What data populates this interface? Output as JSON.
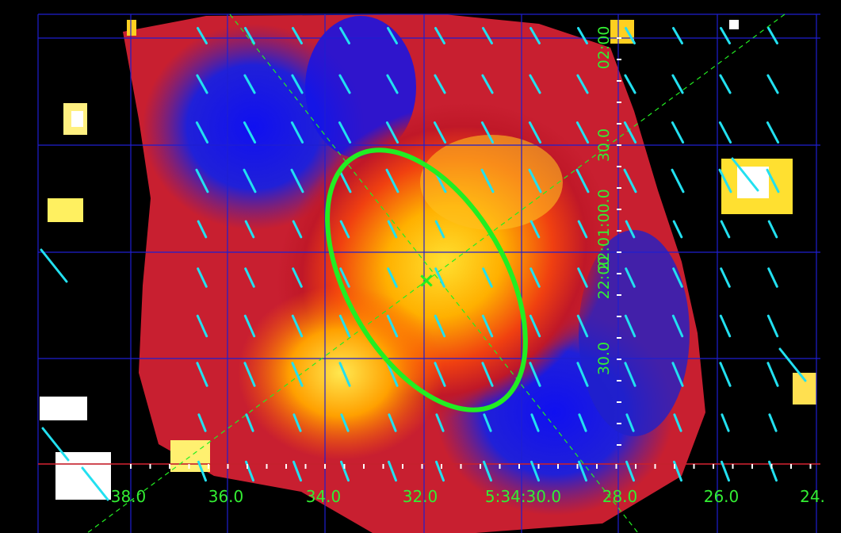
{
  "image": {
    "type": "polarization-map",
    "colormap": "red-yellow-blue",
    "grid_color": "#1f1fd0",
    "axis_color": "#d42020",
    "label_color": "#33ee33",
    "vector_color": "#22e0f0",
    "ellipse_color": "#22ee22"
  },
  "axes": {
    "ra_labels": [
      "38.0",
      "36.0",
      "34.0",
      "32.0",
      "5:34:30.0",
      "28.0",
      "26.0",
      "24."
    ],
    "dec_labels": [
      "02:00",
      "30.0",
      "22:01:00.0",
      "22:00",
      "30.0"
    ],
    "markers": {
      "center_cross": "×"
    }
  }
}
